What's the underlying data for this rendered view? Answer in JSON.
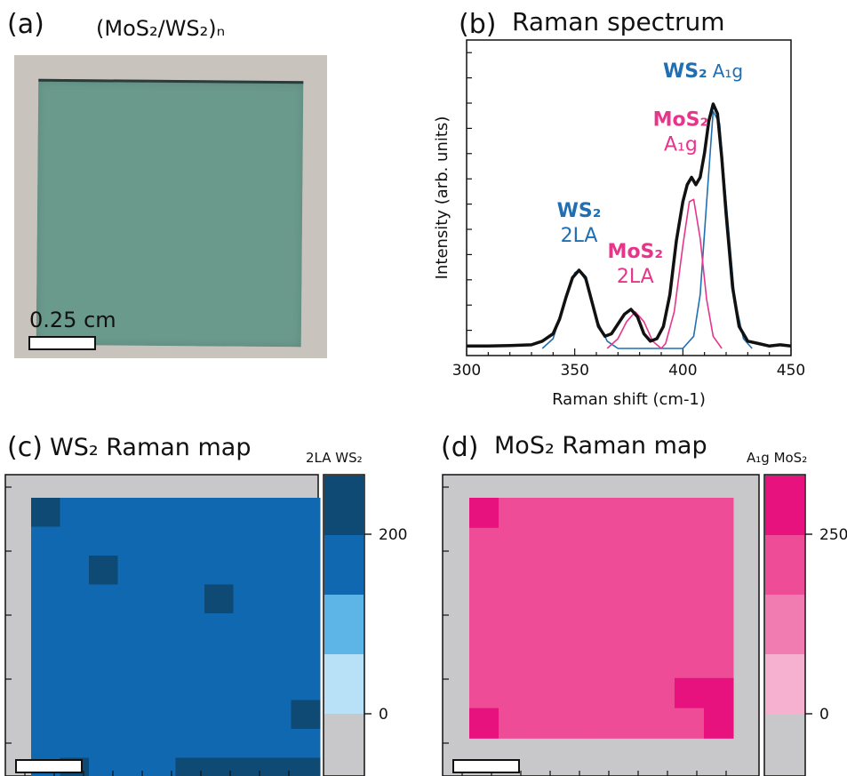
{
  "panels": {
    "a": {
      "label": "(a)",
      "title": "(MoS₂/WS₂)ₙ",
      "scale_bar": "0.25 cm"
    },
    "b": {
      "label": "(b)",
      "title": "Raman spectrum"
    },
    "c": {
      "label": "(c)",
      "title": "WS₂ Raman map",
      "colorbar_label": "2LA WS₂"
    },
    "d": {
      "label": "(d)",
      "title": "MoS₂ Raman map",
      "colorbar_label": "A₁g MoS₂"
    }
  },
  "colors": {
    "ws2_blue": "#1f6fb2",
    "mos2_pink": "#e6358b",
    "spectrum_black": "#111111",
    "map_gray": "#c8c8ca",
    "ws2_levels": [
      "#0e4a73",
      "#1068b0",
      "#5db4e6",
      "#b8e0f6"
    ],
    "mos2_levels": [
      "#e8127f",
      "#ee4c97",
      "#f07cb2",
      "#f6b0d0"
    ]
  },
  "chart_data": [
    {
      "type": "line",
      "title": "Raman spectrum",
      "xlabel": "Raman shift (cm-1)",
      "ylabel": "Intensity (arb. units)",
      "xlim": [
        300,
        450
      ],
      "xticks": [
        300,
        350,
        400,
        450
      ],
      "annotations": [
        {
          "text": "WS₂",
          "sub": "2LA",
          "color": "#1f6fb2",
          "at_x": 352
        },
        {
          "text": "MoS₂",
          "sub": "2LA",
          "color": "#e6358b",
          "at_x": 378
        },
        {
          "text": "MoS₂",
          "sub": "A₁g",
          "color": "#e6358b",
          "at_x": 404
        },
        {
          "text": "WS₂",
          "sub": "A₁g",
          "color": "#1f6fb2",
          "at_x": 417
        }
      ],
      "series": [
        {
          "color": "#111111",
          "x": [
            300,
            310,
            320,
            330,
            335,
            340,
            343,
            346,
            349,
            352,
            355,
            358,
            361,
            364,
            367,
            370,
            373,
            376,
            379,
            382,
            385,
            388,
            391,
            394,
            397,
            400,
            402,
            404,
            406,
            408,
            410,
            412,
            414,
            416,
            418,
            420,
            423,
            426,
            430,
            435,
            440,
            445,
            450
          ],
          "y": [
            0.01,
            0.01,
            0.012,
            0.015,
            0.03,
            0.06,
            0.12,
            0.21,
            0.29,
            0.32,
            0.29,
            0.19,
            0.09,
            0.05,
            0.06,
            0.1,
            0.14,
            0.16,
            0.13,
            0.06,
            0.03,
            0.04,
            0.09,
            0.22,
            0.44,
            0.6,
            0.67,
            0.7,
            0.67,
            0.7,
            0.8,
            0.93,
            1.0,
            0.96,
            0.78,
            0.55,
            0.25,
            0.09,
            0.03,
            0.02,
            0.01,
            0.015,
            0.01
          ]
        },
        {
          "color": "#1f6fb2",
          "x": [
            335,
            340,
            345,
            350,
            352,
            355,
            360,
            365,
            370,
            400,
            405,
            408,
            411,
            414,
            417,
            420,
            424,
            428,
            432
          ],
          "y": [
            0.0,
            0.04,
            0.18,
            0.31,
            0.32,
            0.28,
            0.12,
            0.03,
            0.0,
            0.0,
            0.05,
            0.22,
            0.6,
            0.97,
            0.92,
            0.6,
            0.2,
            0.04,
            0.0
          ]
        },
        {
          "color": "#e6358b",
          "x": [
            365,
            370,
            374,
            378,
            382,
            386,
            390,
            392,
            396,
            400,
            403,
            405,
            408,
            411,
            414,
            418
          ],
          "y": [
            0.0,
            0.04,
            0.11,
            0.15,
            0.11,
            0.03,
            0.0,
            0.02,
            0.15,
            0.42,
            0.6,
            0.61,
            0.45,
            0.2,
            0.05,
            0.0
          ]
        }
      ]
    },
    {
      "type": "heatmap",
      "title": "WS₂ Raman map",
      "colorbar_label": "2LA WS₂",
      "colorbar_ticks": [
        0,
        200
      ],
      "level_colors": [
        "#0e4a73",
        "#1068b0",
        "#5db4e6",
        "#b8e0f6"
      ],
      "grid": [
        [
          1,
          0,
          0,
          0,
          0,
          0,
          0,
          0,
          0,
          0
        ],
        [
          0,
          0,
          0,
          0,
          0,
          0,
          0,
          0,
          0,
          0
        ],
        [
          0,
          0,
          1,
          0,
          0,
          0,
          0,
          0,
          0,
          0
        ],
        [
          0,
          0,
          0,
          0,
          0,
          0,
          1,
          0,
          0,
          0
        ],
        [
          0,
          0,
          0,
          0,
          0,
          0,
          0,
          0,
          0,
          0
        ],
        [
          0,
          0,
          0,
          0,
          0,
          0,
          0,
          0,
          0,
          0
        ],
        [
          0,
          0,
          0,
          0,
          0,
          0,
          0,
          0,
          0,
          0
        ],
        [
          0,
          0,
          0,
          0,
          0,
          0,
          0,
          0,
          0,
          1
        ],
        [
          0,
          0,
          0,
          0,
          0,
          0,
          0,
          0,
          0,
          0
        ],
        [
          0,
          1,
          0,
          0,
          0,
          1,
          1,
          1,
          1,
          1
        ]
      ]
    },
    {
      "type": "heatmap",
      "title": "MoS₂ Raman map",
      "colorbar_label": "A₁g MoS₂",
      "colorbar_ticks": [
        0,
        250
      ],
      "level_colors": [
        "#e8127f",
        "#ee4c97",
        "#f07cb2",
        "#f6b0d0"
      ],
      "grid": [
        [
          1,
          0,
          0,
          0,
          0,
          0,
          0,
          0,
          0
        ],
        [
          0,
          0,
          0,
          0,
          0,
          0,
          0,
          0,
          0
        ],
        [
          0,
          0,
          0,
          0,
          0,
          0,
          0,
          0,
          0
        ],
        [
          0,
          0,
          0,
          0,
          0,
          0,
          0,
          0,
          0
        ],
        [
          0,
          0,
          0,
          0,
          0,
          0,
          0,
          0,
          0
        ],
        [
          0,
          0,
          0,
          0,
          0,
          0,
          0,
          0,
          0
        ],
        [
          0,
          0,
          0,
          0,
          0,
          0,
          0,
          1,
          1
        ],
        [
          1,
          0,
          0,
          0,
          0,
          0,
          0,
          0,
          1
        ]
      ]
    }
  ]
}
